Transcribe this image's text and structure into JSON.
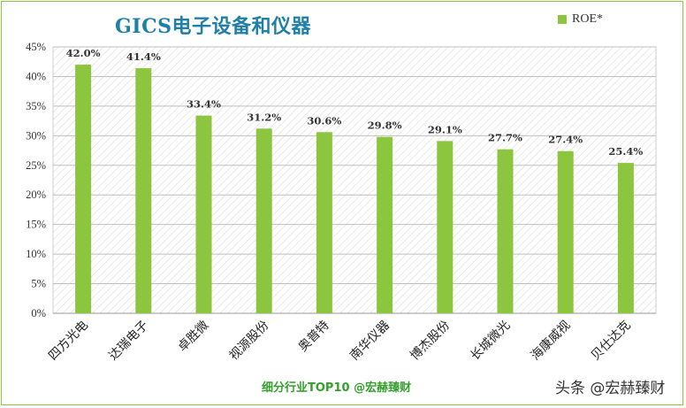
{
  "footer_label": "细分行业TOP10 @宏赫臻财",
  "watermark": "头条 @宏赫臻财",
  "colors": {
    "bar": "#8cc63f",
    "title": "#1f7fa8",
    "footer": "#33a02c",
    "frame": "#8cc63f"
  },
  "chart_data": {
    "type": "bar",
    "title": "GICS电子设备和仪器",
    "legend_position": "top-right",
    "grid": true,
    "ylim": [
      0,
      45
    ],
    "y_ticks": [
      "0%",
      "5%",
      "10%",
      "15%",
      "20%",
      "25%",
      "30%",
      "35%",
      "40%",
      "45%"
    ],
    "categories": [
      "四方光电",
      "达瑞电子",
      "卓胜微",
      "视源股份",
      "奥普特",
      "南华仪器",
      "博杰股份",
      "长城微光",
      "海康威视",
      "贝仕达克"
    ],
    "series": [
      {
        "name": "ROE*",
        "values": [
          42.0,
          41.4,
          33.4,
          31.2,
          30.6,
          29.8,
          29.1,
          27.7,
          27.4,
          25.4
        ],
        "labels": [
          "42.0%",
          "41.4%",
          "33.4%",
          "31.2%",
          "30.6%",
          "29.8%",
          "29.1%",
          "27.7%",
          "27.4%",
          "25.4%"
        ]
      }
    ]
  }
}
